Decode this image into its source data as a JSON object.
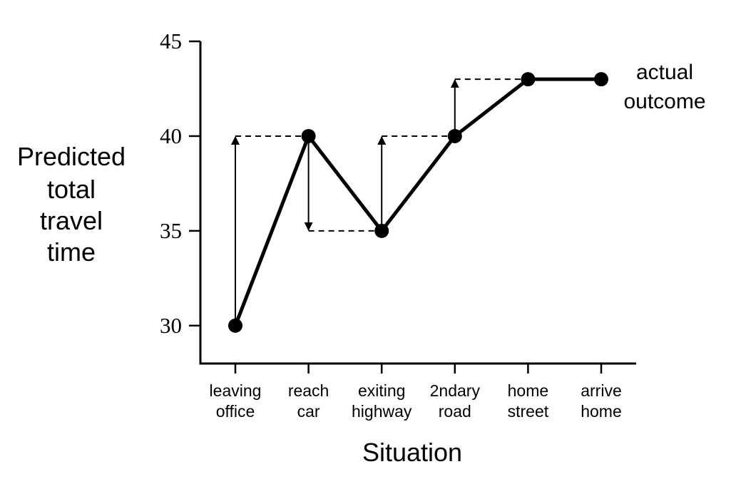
{
  "chart_data": {
    "type": "line",
    "title": "",
    "xlabel": "Situation",
    "ylabel_lines": [
      "Predicted",
      "total",
      "travel",
      "time"
    ],
    "categories": [
      [
        "leaving",
        "office"
      ],
      [
        "reach",
        "car"
      ],
      [
        "exiting",
        "highway"
      ],
      [
        "2ndary",
        "road"
      ],
      [
        "home",
        "street"
      ],
      [
        "arrive",
        "home"
      ]
    ],
    "series": [
      {
        "values": [
          30,
          40,
          35,
          40,
          43,
          43
        ]
      }
    ],
    "ylim": [
      28,
      45
    ],
    "yticks": [
      30,
      35,
      40,
      45
    ],
    "grid": false,
    "annotation": [
      "actual",
      "outcome"
    ],
    "update_arrows": [
      {
        "x_index": 0,
        "from": 30,
        "to": 40,
        "target_x_index": 1
      },
      {
        "x_index": 1,
        "from": 40,
        "to": 35,
        "target_x_index": 2
      },
      {
        "x_index": 2,
        "from": 35,
        "to": 40,
        "target_x_index": 3
      },
      {
        "x_index": 3,
        "from": 40,
        "to": 43,
        "target_x_index": 4
      }
    ]
  }
}
